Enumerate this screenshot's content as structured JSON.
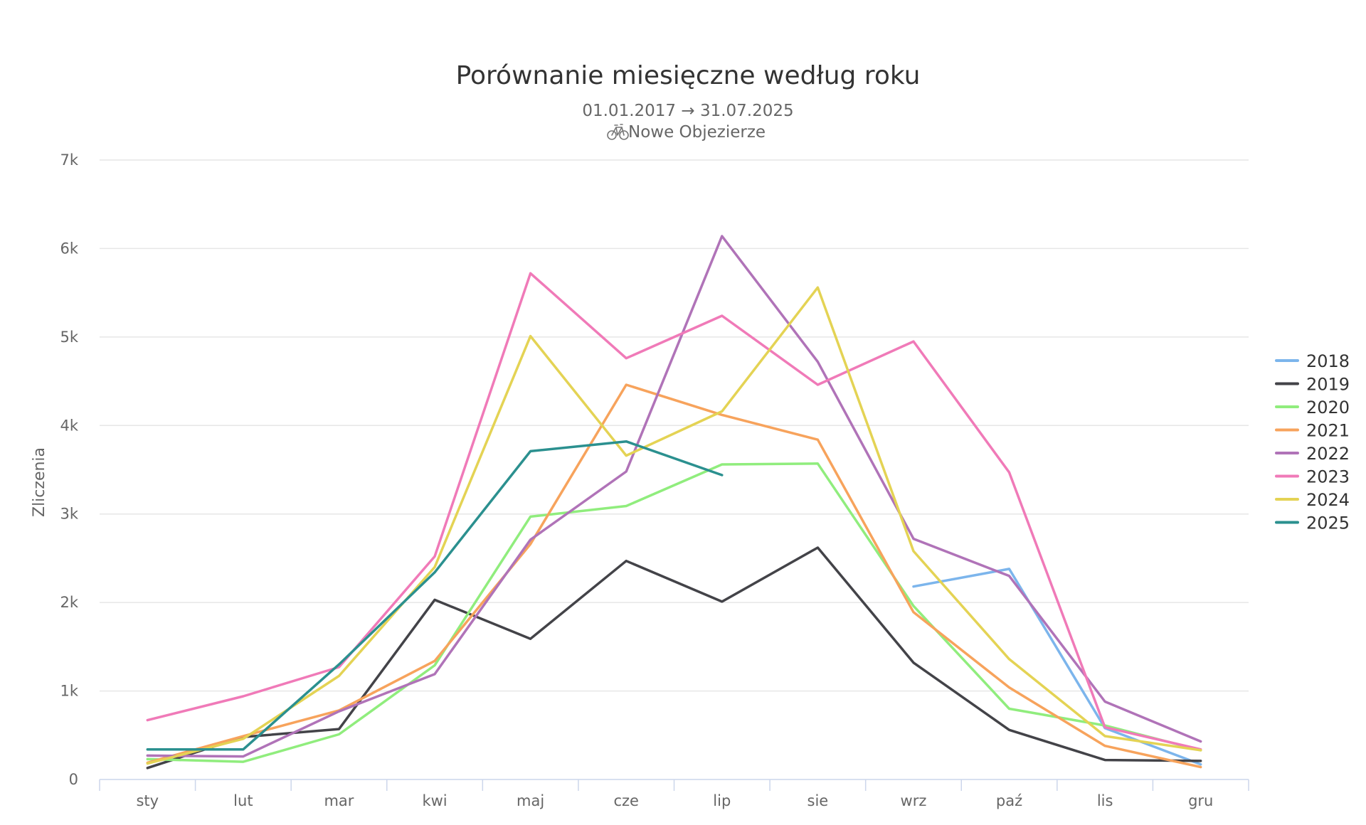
{
  "chart_data": {
    "type": "line",
    "title": "Porównanie miesięczne według roku",
    "subtitle_dates": "01.01.2017 → 31.07.2025",
    "subtitle_location": "Nowe Objezierze",
    "location_icon": "bicycle-icon",
    "ylabel": "Zliczenia",
    "xlabel": "",
    "ylim": [
      0,
      7000
    ],
    "yticks": [
      {
        "value": 0,
        "label": "0"
      },
      {
        "value": 1000,
        "label": "1k"
      },
      {
        "value": 2000,
        "label": "2k"
      },
      {
        "value": 3000,
        "label": "3k"
      },
      {
        "value": 4000,
        "label": "4k"
      },
      {
        "value": 5000,
        "label": "5k"
      },
      {
        "value": 6000,
        "label": "6k"
      },
      {
        "value": 7000,
        "label": "7k"
      }
    ],
    "categories": [
      "sty",
      "lut",
      "mar",
      "kwi",
      "maj",
      "cze",
      "lip",
      "sie",
      "wrz",
      "paź",
      "lis",
      "gru"
    ],
    "grid": true,
    "legend_position": "right",
    "series": [
      {
        "name": "2018",
        "color": "#7cb5ec",
        "values": [
          null,
          null,
          null,
          null,
          null,
          null,
          null,
          null,
          2180,
          2380,
          580,
          170
        ]
      },
      {
        "name": "2019",
        "color": "#434348",
        "values": [
          130,
          480,
          570,
          2030,
          1590,
          2470,
          2010,
          2620,
          1320,
          560,
          220,
          210
        ]
      },
      {
        "name": "2020",
        "color": "#90ed7d",
        "values": [
          230,
          200,
          510,
          1290,
          2970,
          3090,
          3560,
          3570,
          1960,
          800,
          610,
          330
        ]
      },
      {
        "name": "2021",
        "color": "#f7a35c",
        "values": [
          190,
          490,
          780,
          1340,
          2660,
          4460,
          4120,
          3840,
          1890,
          1040,
          380,
          140
        ]
      },
      {
        "name": "2022",
        "color": "#b073b8",
        "values": [
          270,
          260,
          770,
          1190,
          2710,
          3480,
          6140,
          4720,
          2720,
          2300,
          880,
          430
        ]
      },
      {
        "name": "2023",
        "color": "#f07ab8",
        "values": [
          670,
          940,
          1270,
          2520,
          5720,
          4760,
          5240,
          4460,
          4950,
          3470,
          590,
          340
        ]
      },
      {
        "name": "2024",
        "color": "#e4d354",
        "values": [
          180,
          460,
          1170,
          2400,
          5010,
          3660,
          4160,
          5560,
          2580,
          1360,
          490,
          330
        ]
      },
      {
        "name": "2025",
        "color": "#2b908f",
        "values": [
          340,
          340,
          1300,
          2340,
          3710,
          3820,
          3440,
          null,
          null,
          null,
          null,
          null
        ]
      }
    ]
  }
}
